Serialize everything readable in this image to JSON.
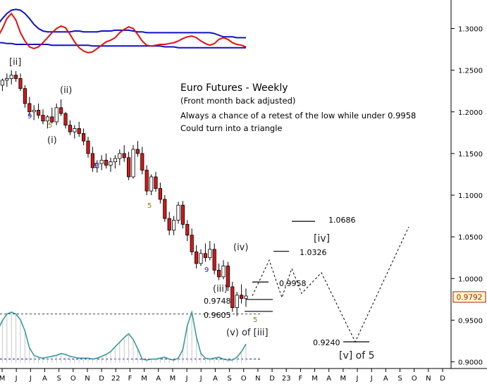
{
  "chart_data": {
    "type": "candlestick",
    "annotations": {
      "title": "Euro Futures - Weekly",
      "subtitle": "(Front month back adjusted)",
      "notes": [
        "Always a chance of a retest of the low while under 0.9958",
        "Could turn into a triangle"
      ]
    },
    "y_axis": {
      "ticks": [
        "1.3000",
        "1.2500",
        "1.2000",
        "1.1500",
        "1.1000",
        "1.0500",
        "1.0000",
        "0.9500",
        "0.9000"
      ],
      "ylim": [
        0.8985,
        1.3235
      ],
      "current_value": "0.9792"
    },
    "x_axis": {
      "ticks": [
        "M",
        "J",
        "J",
        "A",
        "S",
        "O",
        "N",
        "D",
        "22",
        "F",
        "M",
        "A",
        "M",
        "J",
        "J",
        "A",
        "S",
        "O",
        "N",
        "D",
        "23",
        "F",
        "M",
        "A",
        "M",
        "J",
        "J",
        "A",
        "S",
        "O",
        "N",
        "D"
      ]
    },
    "wave_labels": [
      "[ii]",
      "(ii)",
      "(i)",
      "(iii)",
      "(iv)",
      "(v) of [iii]",
      "[iv]",
      "[v] of 5"
    ],
    "count_labels": [
      {
        "text": "9",
        "color": "#1f1fb4"
      },
      {
        "text": "5",
        "color": "#8a7a1a"
      },
      {
        "text": "9",
        "color": "#1f1fb4"
      },
      {
        "text": "5",
        "color": "#8a7a1a"
      },
      {
        "text": "9",
        "color": "#1f1fb4"
      },
      {
        "text": "5",
        "color": "#8a7a1a"
      }
    ],
    "levels": [
      {
        "label": "1.0686",
        "value": 1.0686
      },
      {
        "label": "1.0326",
        "value": 1.0326
      },
      {
        "label": "0.9958",
        "value": 0.9958
      },
      {
        "label": "0.9748",
        "value": 0.9748
      },
      {
        "label": "0.9605",
        "value": 0.9605
      },
      {
        "label": "0.9240",
        "value": 0.924
      }
    ],
    "candles": [
      [
        1.226,
        1.235,
        1.218,
        1.232
      ],
      [
        1.232,
        1.24,
        1.225,
        1.238
      ],
      [
        1.238,
        1.246,
        1.23,
        1.24
      ],
      [
        1.24,
        1.25,
        1.233,
        1.244
      ],
      [
        1.244,
        1.249,
        1.236,
        1.24
      ],
      [
        1.24,
        1.246,
        1.225,
        1.228
      ],
      [
        1.228,
        1.232,
        1.205,
        1.21
      ],
      [
        1.21,
        1.218,
        1.195,
        1.2
      ],
      [
        1.2,
        1.208,
        1.19,
        1.202
      ],
      [
        1.202,
        1.21,
        1.192,
        1.196
      ],
      [
        1.196,
        1.203,
        1.185,
        1.189
      ],
      [
        1.189,
        1.196,
        1.18,
        1.194
      ],
      [
        1.194,
        1.205,
        1.186,
        1.188
      ],
      [
        1.188,
        1.21,
        1.184,
        1.205
      ],
      [
        1.205,
        1.215,
        1.195,
        1.198
      ],
      [
        1.198,
        1.2,
        1.18,
        1.184
      ],
      [
        1.184,
        1.19,
        1.172,
        1.176
      ],
      [
        1.176,
        1.184,
        1.168,
        1.18
      ],
      [
        1.18,
        1.188,
        1.17,
        1.174
      ],
      [
        1.174,
        1.18,
        1.16,
        1.165
      ],
      [
        1.165,
        1.17,
        1.145,
        1.15
      ],
      [
        1.15,
        1.158,
        1.128,
        1.133
      ],
      [
        1.133,
        1.142,
        1.127,
        1.138
      ],
      [
        1.138,
        1.148,
        1.13,
        1.142
      ],
      [
        1.142,
        1.15,
        1.132,
        1.136
      ],
      [
        1.136,
        1.145,
        1.128,
        1.14
      ],
      [
        1.14,
        1.148,
        1.132,
        1.144
      ],
      [
        1.144,
        1.155,
        1.136,
        1.15
      ],
      [
        1.15,
        1.16,
        1.14,
        1.145
      ],
      [
        1.145,
        1.152,
        1.118,
        1.122
      ],
      [
        1.122,
        1.16,
        1.12,
        1.155
      ],
      [
        1.155,
        1.165,
        1.146,
        1.15
      ],
      [
        1.15,
        1.158,
        1.125,
        1.13
      ],
      [
        1.13,
        1.136,
        1.1,
        1.105
      ],
      [
        1.105,
        1.125,
        1.1,
        1.122
      ],
      [
        1.122,
        1.128,
        1.104,
        1.108
      ],
      [
        1.108,
        1.115,
        1.09,
        1.095
      ],
      [
        1.095,
        1.1,
        1.068,
        1.072
      ],
      [
        1.072,
        1.08,
        1.052,
        1.058
      ],
      [
        1.058,
        1.075,
        1.052,
        1.07
      ],
      [
        1.07,
        1.092,
        1.066,
        1.088
      ],
      [
        1.088,
        1.093,
        1.06,
        1.065
      ],
      [
        1.065,
        1.07,
        1.045,
        1.052
      ],
      [
        1.052,
        1.06,
        1.028,
        1.032
      ],
      [
        1.032,
        1.04,
        1.012,
        1.018
      ],
      [
        1.018,
        1.035,
        1.015,
        1.03
      ],
      [
        1.03,
        1.042,
        1.02,
        1.025
      ],
      [
        1.025,
        1.045,
        1.022,
        1.035
      ],
      [
        1.035,
        1.042,
        1.005,
        1.01
      ],
      [
        1.01,
        1.018,
        0.998,
        1.002
      ],
      [
        1.002,
        1.022,
        0.999,
        1.015
      ],
      [
        1.015,
        1.02,
        0.985,
        0.99
      ],
      [
        0.99,
        0.996,
        0.96,
        0.965
      ],
      [
        0.965,
        0.984,
        0.955,
        0.98
      ],
      [
        0.98,
        0.993,
        0.97,
        0.976
      ],
      [
        0.976,
        0.988,
        0.966,
        0.979
      ]
    ],
    "moving_averages": [
      {
        "color": "#1010c8",
        "values": [
          1.305,
          1.312,
          1.318,
          1.322,
          1.323,
          1.322,
          1.318,
          1.312,
          1.305,
          1.3,
          1.297,
          1.296,
          1.296,
          1.296,
          1.296,
          1.296,
          1.296,
          1.297,
          1.297,
          1.296,
          1.296,
          1.296,
          1.296,
          1.297,
          1.297,
          1.297,
          1.298,
          1.298,
          1.298,
          1.298,
          1.297,
          1.296,
          1.296,
          1.295,
          1.295,
          1.295,
          1.295,
          1.295,
          1.295,
          1.295,
          1.295,
          1.295,
          1.295,
          1.295,
          1.295,
          1.295,
          1.295,
          1.295,
          1.294,
          1.292,
          1.29,
          1.29,
          1.29,
          1.289,
          1.289,
          1.289
        ]
      },
      {
        "color": "#1010c8",
        "values": [
          1.283,
          1.283,
          1.282,
          1.282,
          1.281,
          1.281,
          1.281,
          1.281,
          1.281,
          1.281,
          1.281,
          1.281,
          1.28,
          1.28,
          1.28,
          1.28,
          1.28,
          1.28,
          1.28,
          1.28,
          1.28,
          1.279,
          1.279,
          1.279,
          1.279,
          1.279,
          1.279,
          1.279,
          1.279,
          1.279,
          1.279,
          1.279,
          1.279,
          1.279,
          1.279,
          1.279,
          1.279,
          1.278,
          1.278,
          1.278,
          1.277,
          1.277,
          1.277,
          1.277,
          1.277,
          1.277,
          1.277,
          1.277,
          1.277,
          1.277,
          1.277,
          1.277,
          1.277,
          1.277,
          1.277,
          1.277
        ]
      },
      {
        "color": "#e01010",
        "values": [
          1.29,
          1.3,
          1.312,
          1.318,
          1.31,
          1.295,
          1.285,
          1.278,
          1.276,
          1.278,
          1.283,
          1.289,
          1.295,
          1.3,
          1.303,
          1.301,
          1.293,
          1.284,
          1.277,
          1.273,
          1.271,
          1.272,
          1.276,
          1.28,
          1.284,
          1.286,
          1.289,
          1.295,
          1.299,
          1.302,
          1.3,
          1.293,
          1.285,
          1.28,
          1.279,
          1.28,
          1.281,
          1.281,
          1.282,
          1.283,
          1.285,
          1.288,
          1.29,
          1.291,
          1.289,
          1.285,
          1.282,
          1.28,
          1.282,
          1.287,
          1.289,
          1.287,
          1.283,
          1.281,
          1.28,
          1.278
        ]
      }
    ],
    "oscillator": {
      "color": "#3a9a9a",
      "values": [
        35,
        45,
        52,
        54,
        52,
        46,
        34,
        16,
        8,
        6,
        5,
        6,
        7,
        8,
        10,
        9,
        7,
        6,
        5,
        5,
        5,
        4,
        5,
        7,
        9,
        12,
        17,
        22,
        27,
        31,
        25,
        15,
        4,
        3,
        4,
        4,
        5,
        6,
        4,
        3,
        5,
        14,
        40,
        54,
        28,
        10,
        5,
        4,
        5,
        6,
        4,
        3,
        3,
        6,
        12,
        20
      ]
    },
    "projection": [
      {
        "x": "O",
        "y": 0.9792
      },
      {
        "y": 1.022
      },
      {
        "y": 0.977
      },
      {
        "y": 1.012
      },
      {
        "y": 0.982
      },
      {
        "y": 1.007
      },
      {
        "y": 0.924
      },
      {
        "x": "J",
        "y": 1.062
      }
    ]
  }
}
